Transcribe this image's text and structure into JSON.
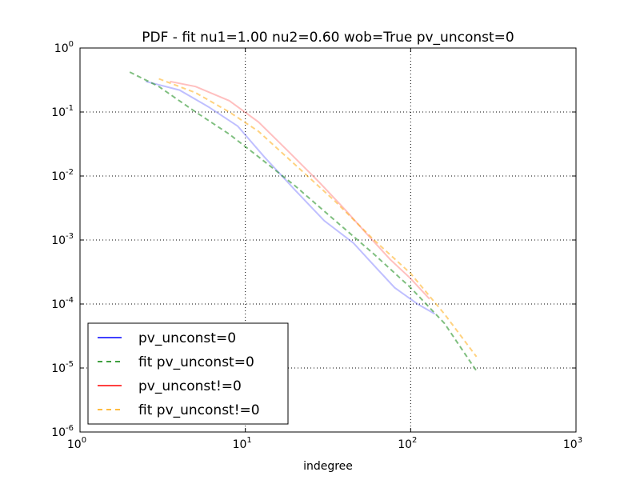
{
  "chart_data": {
    "type": "line",
    "title": "PDF - fit nu1=1.00 nu2=0.60 wob=True pv_unconst=0",
    "xlabel": "indegree",
    "ylabel": "",
    "xscale": "log",
    "yscale": "log",
    "xlim": [
      1,
      1000
    ],
    "ylim": [
      1e-06,
      1
    ],
    "grid": true,
    "legend_position": "lower-left",
    "x_ticks": [
      {
        "base": "10",
        "exp": "0"
      },
      {
        "base": "10",
        "exp": "1"
      },
      {
        "base": "10",
        "exp": "2"
      },
      {
        "base": "10",
        "exp": "3"
      }
    ],
    "y_ticks": [
      {
        "base": "10",
        "exp": "0"
      },
      {
        "base": "10",
        "exp": "-1"
      },
      {
        "base": "10",
        "exp": "-2"
      },
      {
        "base": "10",
        "exp": "-3"
      },
      {
        "base": "10",
        "exp": "-4"
      },
      {
        "base": "10",
        "exp": "-5"
      },
      {
        "base": "10",
        "exp": "-6"
      }
    ],
    "series": [
      {
        "name": "pv_unconst=0",
        "color": "#0000ff",
        "style": "solid",
        "alpha": 0.25,
        "points": [
          [
            2.5,
            0.3
          ],
          [
            4,
            0.22
          ],
          [
            6,
            0.12
          ],
          [
            9,
            0.06
          ],
          [
            13,
            0.02
          ],
          [
            20,
            0.006
          ],
          [
            30,
            0.002
          ],
          [
            45,
            0.0009
          ],
          [
            60,
            0.0004
          ],
          [
            80,
            0.00018
          ],
          [
            110,
            0.0001
          ],
          [
            140,
            7e-05
          ]
        ]
      },
      {
        "name": "fit pv_unconst=0",
        "color": "#008000",
        "style": "dashed",
        "alpha": 0.5,
        "points": [
          [
            2,
            0.42
          ],
          [
            3,
            0.25
          ],
          [
            5,
            0.1
          ],
          [
            8,
            0.045
          ],
          [
            12,
            0.02
          ],
          [
            20,
            0.007
          ],
          [
            35,
            0.002
          ],
          [
            60,
            0.0006
          ],
          [
            100,
            0.00018
          ],
          [
            160,
            5e-05
          ],
          [
            250,
            9e-06
          ]
        ]
      },
      {
        "name": "pv_unconst!=0",
        "color": "#ff0000",
        "style": "solid",
        "alpha": 0.25,
        "points": [
          [
            3.5,
            0.3
          ],
          [
            5,
            0.25
          ],
          [
            8,
            0.15
          ],
          [
            12,
            0.07
          ],
          [
            18,
            0.025
          ],
          [
            28,
            0.008
          ],
          [
            40,
            0.003
          ],
          [
            55,
            0.0012
          ],
          [
            75,
            0.0005
          ],
          [
            100,
            0.00025
          ],
          [
            130,
            0.00012
          ]
        ]
      },
      {
        "name": "fit pv_unconst!=0",
        "color": "#ffa500",
        "style": "dashed",
        "alpha": 0.5,
        "points": [
          [
            3,
            0.33
          ],
          [
            5,
            0.2
          ],
          [
            8,
            0.1
          ],
          [
            12,
            0.05
          ],
          [
            20,
            0.015
          ],
          [
            35,
            0.004
          ],
          [
            60,
            0.001
          ],
          [
            100,
            0.0003
          ],
          [
            160,
            7e-05
          ],
          [
            250,
            1.5e-05
          ]
        ]
      }
    ]
  }
}
